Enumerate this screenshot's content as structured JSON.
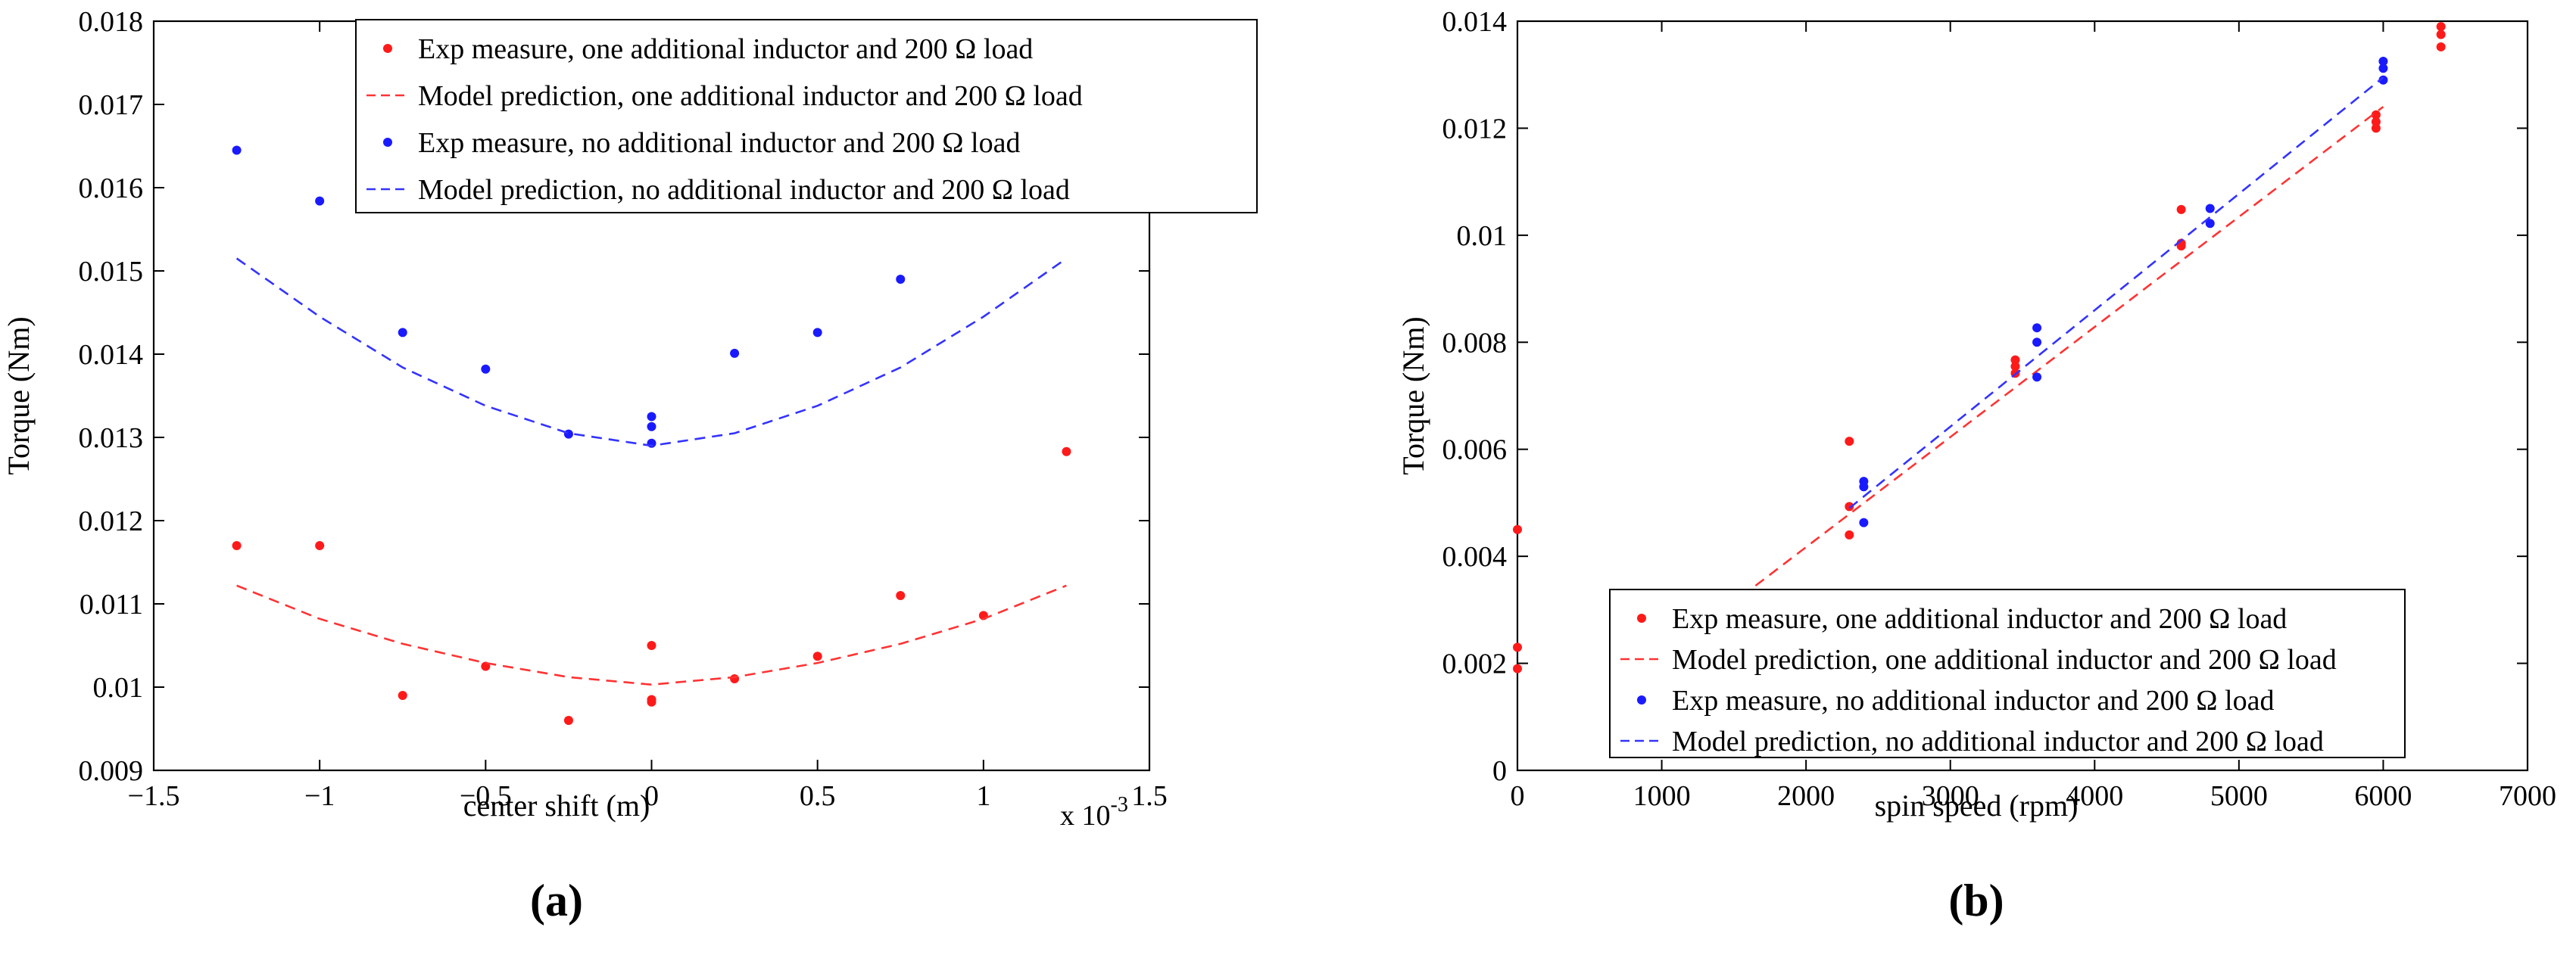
{
  "chart_data": [
    {
      "id": "a",
      "type": "scatter",
      "panel_label": "(a)",
      "title": "",
      "xlabel": "center shift (m)",
      "ylabel": "Torque (Nm)",
      "x_multiplier": "x 10",
      "x_multiplier_exp": "-3",
      "xlim": [
        -1.5,
        1.5
      ],
      "ylim": [
        0.009,
        0.018
      ],
      "xticks": [
        -1.5,
        -1,
        -0.5,
        0,
        0.5,
        1,
        1.5
      ],
      "xtick_labels": [
        "−1.5",
        "−1",
        "−0.5",
        "0",
        "0.5",
        "1",
        "1.5"
      ],
      "yticks": [
        0.009,
        0.01,
        0.011,
        0.012,
        0.013,
        0.014,
        0.015,
        0.016,
        0.017,
        0.018
      ],
      "ytick_labels": [
        "0.009",
        "0.01",
        "0.011",
        "0.012",
        "0.013",
        "0.014",
        "0.015",
        "0.016",
        "0.017",
        "0.018"
      ],
      "grid": false,
      "legend_position": "top-right",
      "series": [
        {
          "name": "Exp measure, one additional inductor and 200 Ω load",
          "kind": "points",
          "color": "#ff1a1a",
          "x": [
            -1.25,
            -1.0,
            -0.75,
            -0.5,
            -0.25,
            0,
            0,
            0,
            0.25,
            0.5,
            0.75,
            1.0,
            1.25
          ],
          "y": [
            0.0117,
            0.0117,
            0.0099,
            0.01025,
            0.0096,
            0.0105,
            0.00985,
            0.00982,
            0.0101,
            0.01037,
            0.0111,
            0.01086,
            0.01283
          ]
        },
        {
          "name": "Model prediction, one additional inductor and 200 Ω load",
          "kind": "line",
          "color": "#ff3333",
          "x": [
            -1.25,
            -1.0,
            -0.75,
            -0.5,
            -0.25,
            0,
            0.25,
            0.5,
            0.75,
            1.0,
            1.25
          ],
          "y": [
            0.01122,
            0.01082,
            0.01052,
            0.01029,
            0.01012,
            0.01003,
            0.01012,
            0.01029,
            0.01052,
            0.01082,
            0.01122
          ]
        },
        {
          "name": "Exp measure, no additional inductor and 200 Ω load",
          "kind": "points",
          "color": "#1a1aff",
          "x": [
            -1.25,
            -1.0,
            -0.75,
            -0.5,
            -0.25,
            0,
            0,
            0,
            0.25,
            0.5,
            0.75
          ],
          "y": [
            0.01645,
            0.01584,
            0.01426,
            0.01382,
            0.01304,
            0.01325,
            0.01313,
            0.01293,
            0.01401,
            0.01426,
            0.0149
          ]
        },
        {
          "name": "Model prediction, no additional inductor and 200 Ω load",
          "kind": "line",
          "color": "#3333ff",
          "x": [
            -1.25,
            -1.0,
            -0.75,
            -0.5,
            -0.25,
            0,
            0.25,
            0.5,
            0.75,
            1.0,
            1.25
          ],
          "y": [
            0.01515,
            0.01445,
            0.01384,
            0.01338,
            0.01305,
            0.0129,
            0.01305,
            0.01338,
            0.01384,
            0.01445,
            0.01515
          ]
        }
      ]
    },
    {
      "id": "b",
      "type": "scatter",
      "panel_label": "(b)",
      "title": "",
      "xlabel": "spin speed (rpm)",
      "ylabel": "Torque (Nm)",
      "xlim": [
        0,
        7000
      ],
      "ylim": [
        0,
        0.014
      ],
      "xticks": [
        0,
        1000,
        2000,
        3000,
        4000,
        5000,
        6000,
        7000
      ],
      "xtick_labels": [
        "0",
        "1000",
        "2000",
        "3000",
        "4000",
        "5000",
        "6000",
        "7000"
      ],
      "yticks": [
        0,
        0.002,
        0.004,
        0.006,
        0.008,
        0.01,
        0.012,
        0.014
      ],
      "ytick_labels": [
        "0",
        "0.002",
        "0.004",
        "0.006",
        "0.008",
        "0.01",
        "0.012",
        "0.014"
      ],
      "grid": false,
      "legend_position": "bottom-right",
      "series": [
        {
          "name": "Exp measure, one additional inductor and 200 Ω load",
          "kind": "points",
          "color": "#ff1a1a",
          "x": [
            0,
            0,
            0,
            2300,
            2300,
            2300,
            3450,
            3450,
            3450,
            4600,
            4600,
            4600,
            5950,
            5950,
            5950,
            6400,
            6400,
            6400
          ],
          "y": [
            0.0045,
            0.0023,
            0.0019,
            0.00615,
            0.00493,
            0.0044,
            0.00767,
            0.00755,
            0.00742,
            0.01048,
            0.00985,
            0.0098,
            0.01225,
            0.01212,
            0.012,
            0.0139,
            0.01375,
            0.01352
          ]
        },
        {
          "name": "Model prediction, one additional inductor and 200 Ω load",
          "kind": "line",
          "color": "#ff3333",
          "x": [
            1650,
            6000
          ],
          "y": [
            0.00345,
            0.0124
          ]
        },
        {
          "name": "Exp measure, no additional inductor and 200 Ω load",
          "kind": "points",
          "color": "#1a1aff",
          "x": [
            2400,
            2400,
            2400,
            3600,
            3600,
            3600,
            4800,
            4800,
            6000,
            6000,
            6000
          ],
          "y": [
            0.0054,
            0.0053,
            0.00463,
            0.00827,
            0.008,
            0.00735,
            0.0105,
            0.01022,
            0.01325,
            0.01312,
            0.0129
          ]
        },
        {
          "name": "Model prediction, no additional inductor and 200 Ω load",
          "kind": "line",
          "color": "#3333ff",
          "x": [
            2300,
            6000
          ],
          "y": [
            0.0049,
            0.01295
          ]
        }
      ]
    }
  ]
}
